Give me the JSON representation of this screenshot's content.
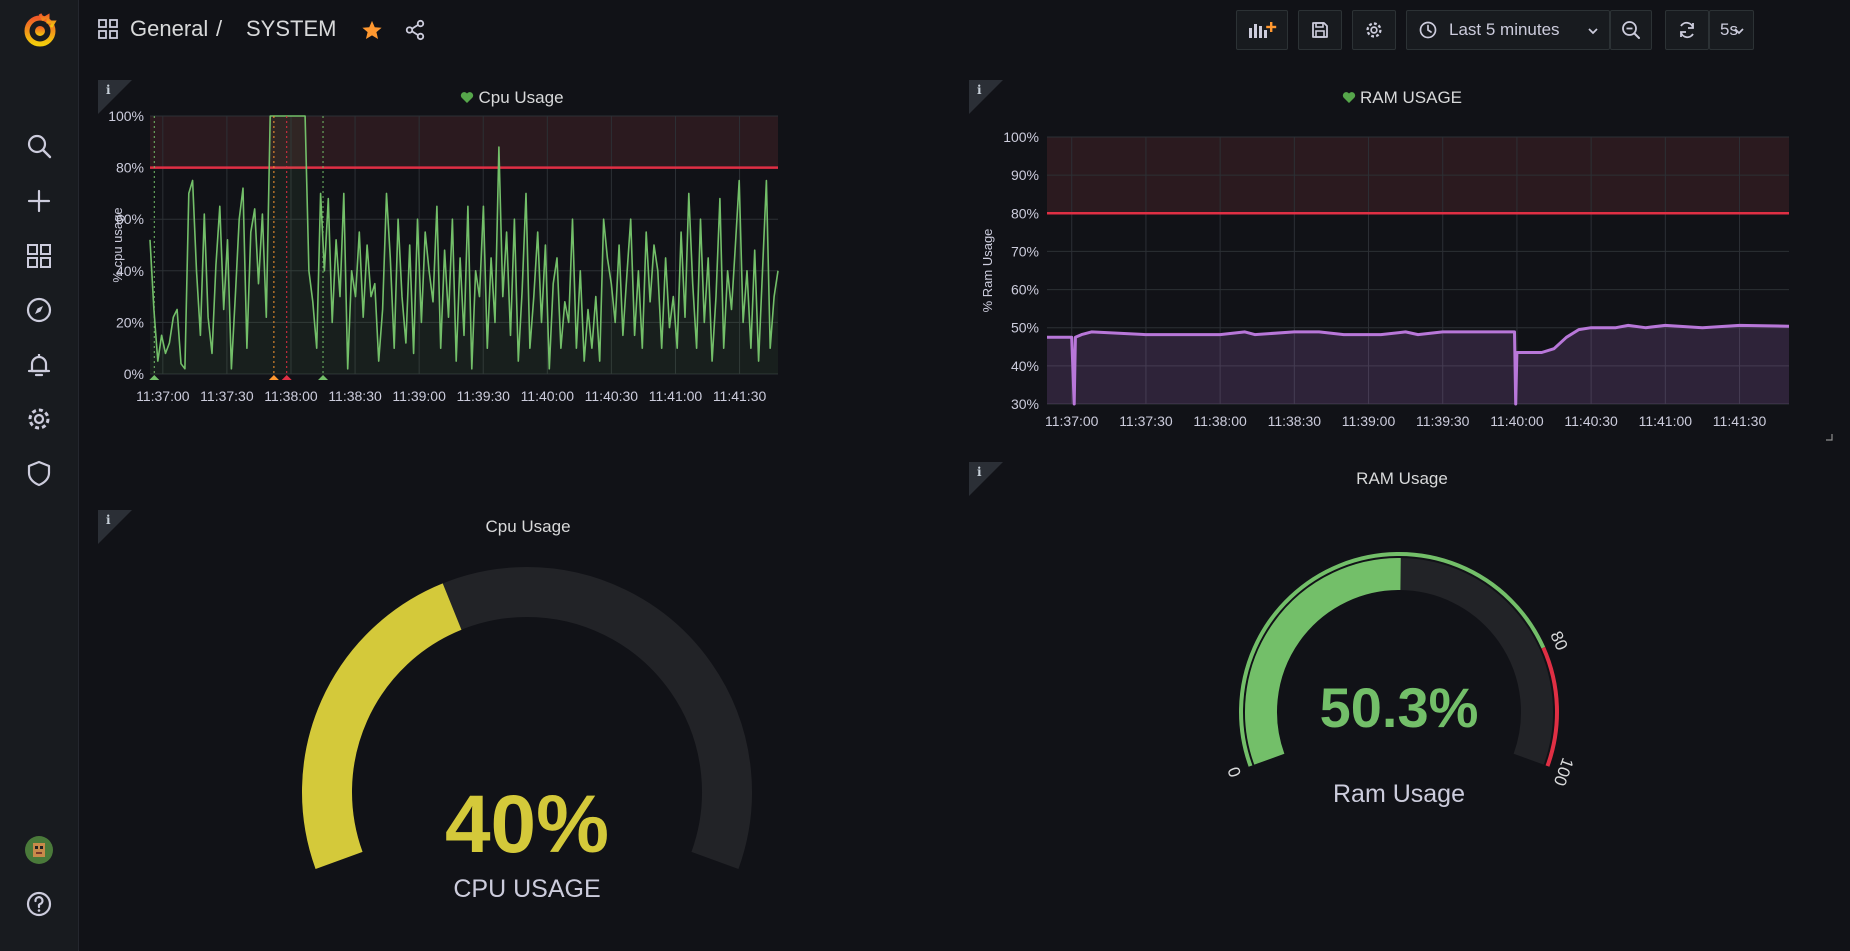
{
  "sidebar": {
    "items": [
      {
        "icon": "search-icon"
      },
      {
        "icon": "plus-icon"
      },
      {
        "icon": "dashboards-icon"
      },
      {
        "icon": "explore-icon"
      },
      {
        "icon": "bell-icon"
      },
      {
        "icon": "gear-icon"
      },
      {
        "icon": "shield-icon"
      }
    ],
    "help_icon": "question-icon"
  },
  "header": {
    "folder": "General",
    "separator": "/",
    "title": "SYSTEM",
    "time_range": "Last 5 minutes",
    "refresh_interval": "5s"
  },
  "colors": {
    "green": "#73bf69",
    "yellow": "#d4c93a",
    "purple": "#b877d9",
    "red": "#e02f44",
    "orange": "#ff9830"
  },
  "panels": {
    "cpu_graph": {
      "title": "Cpu Usage"
    },
    "ram_graph": {
      "title": "RAM USAGE"
    },
    "cpu_gauge": {
      "title": "Cpu Usage",
      "value_text": "40%",
      "label": "CPU USAGE"
    },
    "ram_gauge": {
      "title": "RAM Usage",
      "value_text": "50.3%",
      "label": "Ram Usage"
    }
  },
  "chart_data": [
    {
      "type": "line",
      "title": "Cpu Usage",
      "ylabel": "% cpu usage",
      "xlabel": "",
      "ylim": [
        0,
        100
      ],
      "threshold": 80,
      "y_ticks": [
        "0%",
        "20%",
        "40%",
        "60%",
        "80%",
        "100%"
      ],
      "x_ticks": [
        "11:37:00",
        "11:37:30",
        "11:38:00",
        "11:38:30",
        "11:39:00",
        "11:39:30",
        "11:40:00",
        "11:40:30",
        "11:41:00",
        "11:41:30"
      ],
      "x_range_seconds": [
        0,
        294
      ],
      "series": [
        {
          "name": "cpu",
          "values": [
            52,
            25,
            5,
            15,
            8,
            12,
            22,
            25,
            4,
            2,
            70,
            75,
            40,
            15,
            62,
            22,
            8,
            42,
            65,
            25,
            52,
            2,
            30,
            60,
            72,
            10,
            55,
            64,
            35,
            62,
            22,
            100,
            100,
            100,
            100,
            100,
            100,
            100,
            100,
            100,
            100,
            40,
            28,
            10,
            70,
            40,
            68,
            20,
            52,
            30,
            70,
            2,
            40,
            30,
            55,
            22,
            50,
            30,
            35,
            5,
            25,
            70,
            45,
            10,
            60,
            30,
            12,
            50,
            8,
            60,
            20,
            55,
            40,
            28,
            65,
            10,
            48,
            22,
            60,
            5,
            45,
            15,
            65,
            2,
            40,
            30,
            65,
            10,
            45,
            20,
            88,
            30,
            55,
            15,
            60,
            5,
            32,
            70,
            10,
            30,
            55,
            20,
            50,
            2,
            35,
            45,
            10,
            28,
            20,
            60,
            10,
            40,
            5,
            25,
            10,
            30,
            5,
            60,
            45,
            35,
            20,
            50,
            15,
            38,
            60,
            15,
            40,
            10,
            55,
            28,
            50,
            40,
            10,
            45,
            18,
            30,
            10,
            55,
            22,
            70,
            35,
            10,
            60,
            20,
            45,
            5,
            30,
            68,
            10,
            40,
            25,
            50,
            75,
            20,
            40,
            10,
            48,
            5,
            40,
            75,
            10,
            30,
            40
          ]
        }
      ]
    },
    {
      "type": "line",
      "title": "RAM USAGE",
      "ylabel": "% Ram Usage",
      "xlabel": "",
      "ylim": [
        30,
        100
      ],
      "threshold": 80,
      "y_ticks": [
        "30%",
        "40%",
        "50%",
        "60%",
        "70%",
        "80%",
        "90%",
        "100%"
      ],
      "x_ticks": [
        "11:37:00",
        "11:37:30",
        "11:38:00",
        "11:38:30",
        "11:39:00",
        "11:39:30",
        "11:40:00",
        "11:40:30",
        "11:41:00",
        "11:41:30"
      ],
      "x_range_seconds": [
        -10,
        290
      ],
      "series": [
        {
          "name": "ram",
          "points": [
            [
              -10,
              47.5
            ],
            [
              0,
              47.5
            ],
            [
              1,
              30
            ],
            [
              1.5,
              47.5
            ],
            [
              4,
              48.2
            ],
            [
              8,
              48.9
            ],
            [
              30,
              48.2
            ],
            [
              60,
              48.2
            ],
            [
              70,
              48.9
            ],
            [
              74,
              48.2
            ],
            [
              90,
              48.9
            ],
            [
              100,
              48.9
            ],
            [
              110,
              48.2
            ],
            [
              125,
              48.2
            ],
            [
              135,
              48.9
            ],
            [
              140,
              48.2
            ],
            [
              150,
              48.9
            ],
            [
              165,
              48.9
            ],
            [
              175,
              48.9
            ],
            [
              179,
              48.9
            ],
            [
              179.5,
              30
            ],
            [
              180,
              43.5
            ],
            [
              184,
              43.5
            ],
            [
              190,
              43.5
            ],
            [
              195,
              44.5
            ],
            [
              200,
              47.5
            ],
            [
              205,
              49.5
            ],
            [
              210,
              50
            ],
            [
              220,
              50
            ],
            [
              225,
              50.6
            ],
            [
              232,
              50
            ],
            [
              240,
              50.6
            ],
            [
              255,
              50
            ],
            [
              270,
              50.6
            ],
            [
              290,
              50.4
            ]
          ]
        }
      ]
    },
    {
      "type": "gauge",
      "title": "Cpu Usage",
      "value": 40,
      "min": 0,
      "max": 100,
      "unit": "%",
      "label": "CPU USAGE"
    },
    {
      "type": "gauge",
      "title": "RAM Usage",
      "value": 50.3,
      "min": 0,
      "max": 100,
      "unit": "%",
      "label": "Ram Usage",
      "threshold": 80,
      "tick_labels": [
        "0",
        "80",
        "100"
      ]
    }
  ]
}
